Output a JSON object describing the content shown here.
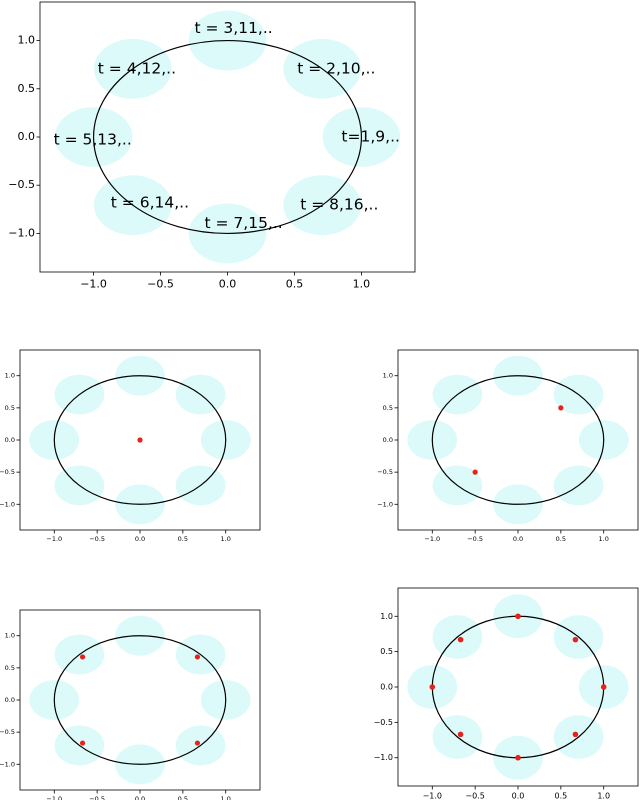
{
  "chart_data": [
    {
      "type": "scatter",
      "xlim": [
        -1.4,
        1.4
      ],
      "ylim": [
        -1.4,
        1.4
      ],
      "xticks": [
        {
          "value": -1.0,
          "label": "−1.0"
        },
        {
          "value": -0.5,
          "label": "−0.5"
        },
        {
          "value": 0.0,
          "label": "0.0"
        },
        {
          "value": 0.5,
          "label": "0.5"
        },
        {
          "value": 1.0,
          "label": "1.0"
        }
      ],
      "yticks": [
        {
          "value": -1.0,
          "label": "−1.0"
        },
        {
          "value": -0.5,
          "label": "−0.5"
        },
        {
          "value": 0.0,
          "label": "0.0"
        },
        {
          "value": 0.5,
          "label": "0.5"
        },
        {
          "value": 1.0,
          "label": "1.0"
        }
      ],
      "annotations": [
        "t=1,9,..",
        "t = 2,10,..",
        "t = 3,11,..",
        "t = 4,12,..",
        "t = 5,13,..",
        "t = 6,14,..",
        "t = 7,15,..",
        "t = 8,16,.."
      ]
    },
    {
      "type": "scatter",
      "xlim": [
        -1.4,
        1.4
      ],
      "ylim": [
        -1.4,
        1.4
      ],
      "xticks": [
        {
          "value": -1.0,
          "label": "−1.0"
        },
        {
          "value": -0.5,
          "label": "−0.5"
        },
        {
          "value": 0.0,
          "label": "0.0"
        },
        {
          "value": 0.5,
          "label": "0.5"
        },
        {
          "value": 1.0,
          "label": "1.0"
        }
      ],
      "yticks": [
        {
          "value": -1.0,
          "label": "−1.0"
        },
        {
          "value": -0.5,
          "label": "−0.5"
        },
        {
          "value": 0.0,
          "label": "0.0"
        },
        {
          "value": 0.5,
          "label": "0.5"
        },
        {
          "value": 1.0,
          "label": "1.0"
        }
      ],
      "x": [
        0
      ],
      "y": [
        0
      ],
      "color": "#e8221b"
    },
    {
      "type": "scatter",
      "xlim": [
        -1.4,
        1.4
      ],
      "ylim": [
        -1.4,
        1.4
      ],
      "xticks": [
        {
          "value": -1.0,
          "label": "−1.0"
        },
        {
          "value": -0.5,
          "label": "−0.5"
        },
        {
          "value": 0.0,
          "label": "0.0"
        },
        {
          "value": 0.5,
          "label": "0.5"
        },
        {
          "value": 1.0,
          "label": "1.0"
        }
      ],
      "yticks": [
        {
          "value": -1.0,
          "label": "−1.0"
        },
        {
          "value": -0.5,
          "label": "−0.5"
        },
        {
          "value": 0.0,
          "label": "0.0"
        },
        {
          "value": 0.5,
          "label": "0.5"
        },
        {
          "value": 1.0,
          "label": "1.0"
        }
      ],
      "x": [
        0.5,
        -0.5
      ],
      "y": [
        0.5,
        -0.5
      ],
      "color": "#e8221b"
    },
    {
      "type": "scatter",
      "xlim": [
        -1.4,
        1.4
      ],
      "ylim": [
        -1.4,
        1.4
      ],
      "xticks": [
        {
          "value": -1.0,
          "label": "−1.0"
        },
        {
          "value": -0.5,
          "label": "−0.5"
        },
        {
          "value": 0.0,
          "label": "0.0"
        },
        {
          "value": 0.5,
          "label": "0.5"
        },
        {
          "value": 1.0,
          "label": "1.0"
        }
      ],
      "yticks": [
        {
          "value": -1.0,
          "label": "−1.0"
        },
        {
          "value": -0.5,
          "label": "−0.5"
        },
        {
          "value": 0.0,
          "label": "0.0"
        },
        {
          "value": 0.5,
          "label": "0.5"
        },
        {
          "value": 1.0,
          "label": "1.0"
        }
      ],
      "x": [
        0.67,
        -0.67,
        -0.67,
        0.67
      ],
      "y": [
        0.67,
        0.67,
        -0.67,
        -0.67
      ],
      "color": "#e8221b"
    },
    {
      "type": "scatter",
      "xlim": [
        -1.4,
        1.4
      ],
      "ylim": [
        -1.4,
        1.4
      ],
      "xticks": [
        {
          "value": -1.0,
          "label": "−1.0"
        },
        {
          "value": -0.5,
          "label": "−0.5"
        },
        {
          "value": 0.0,
          "label": "0.0"
        },
        {
          "value": 0.5,
          "label": "0.5"
        },
        {
          "value": 1.0,
          "label": "1.0"
        }
      ],
      "yticks": [
        {
          "value": -1.0,
          "label": "−1.0"
        },
        {
          "value": -0.5,
          "label": "−0.5"
        },
        {
          "value": 0.0,
          "label": "0.0"
        },
        {
          "value": 0.5,
          "label": "0.5"
        },
        {
          "value": 1.0,
          "label": "1.0"
        }
      ],
      "x": [
        1,
        0.67,
        0,
        -0.67,
        -1,
        -0.67,
        0,
        0.67
      ],
      "y": [
        0,
        0.67,
        1,
        0.67,
        0,
        -0.67,
        -1,
        -0.67
      ],
      "color": "#e8221b"
    }
  ]
}
